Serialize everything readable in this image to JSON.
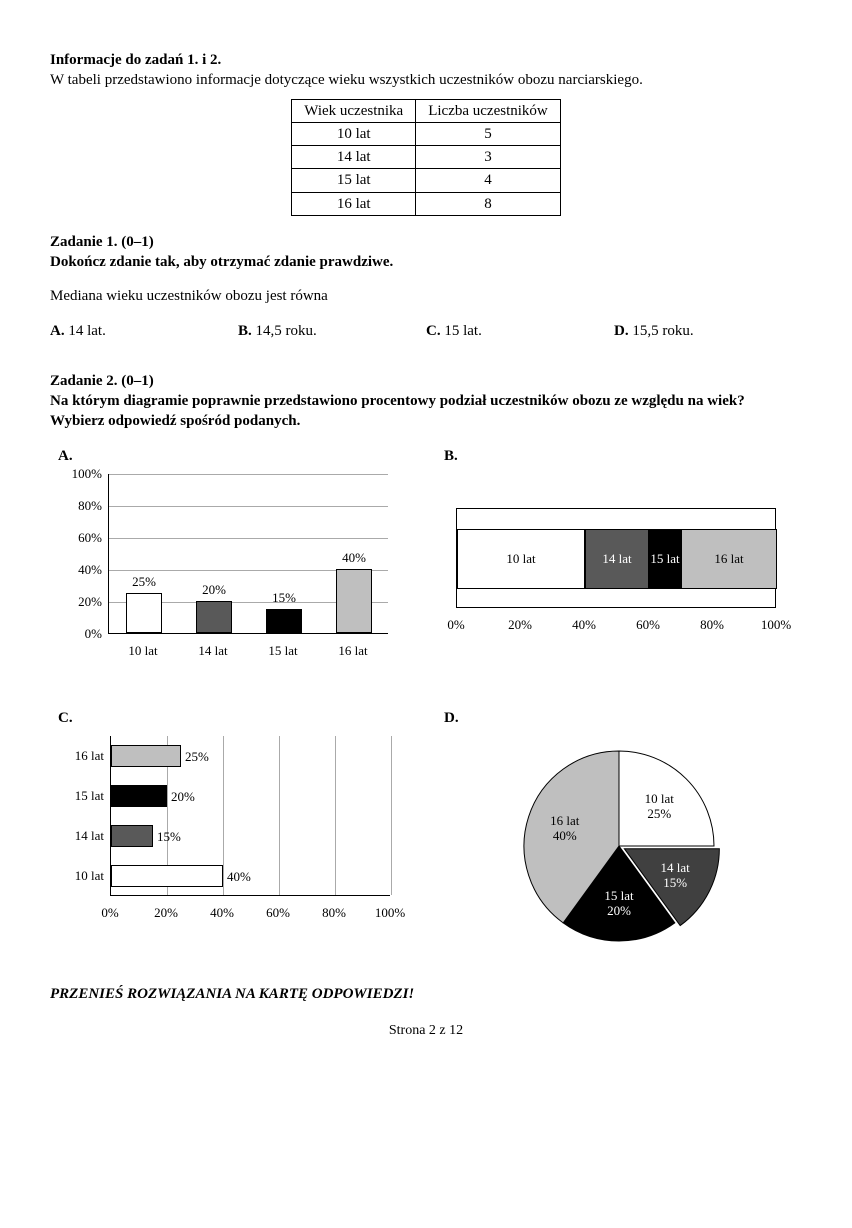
{
  "info": {
    "heading": "Informacje do zadań 1. i 2.",
    "text": "W tabeli przedstawiono informacje dotyczące wieku wszystkich uczestników obozu narciarskiego."
  },
  "table": {
    "columns": [
      "Wiek uczestnika",
      "Liczba uczestników"
    ],
    "rows": [
      [
        "10 lat",
        "5"
      ],
      [
        "14 lat",
        "3"
      ],
      [
        "15 lat",
        "4"
      ],
      [
        "16 lat",
        "8"
      ]
    ]
  },
  "task1": {
    "heading": "Zadanie 1. (0–1)",
    "instruction": "Dokończ zdanie tak, aby otrzymać zdanie prawdziwe.",
    "prompt": "Mediana wieku uczestników obozu jest równa",
    "answers": {
      "A": "14 lat.",
      "B": "14,5 roku.",
      "C": "15 lat.",
      "D": "15,5 roku."
    }
  },
  "task2": {
    "heading": "Zadanie 2. (0–1)",
    "instruction": "Na którym diagramie poprawnie przedstawiono procentowy podział uczestników obozu ze względu na wiek? Wybierz odpowiedź spośród podanych.",
    "labels": {
      "A": "A.",
      "B": "B.",
      "C": "C.",
      "D": "D."
    }
  },
  "chartA": {
    "type": "bar",
    "categories": [
      "10 lat",
      "14 lat",
      "15 lat",
      "16 lat"
    ],
    "values": [
      25,
      20,
      15,
      40
    ],
    "value_labels": [
      "25%",
      "20%",
      "15%",
      "40%"
    ],
    "bar_colors": [
      "#ffffff",
      "#595959",
      "#000000",
      "#bfbfbf"
    ],
    "ylim": [
      0,
      100
    ],
    "ytick_step": 20,
    "ytick_labels": [
      "0%",
      "20%",
      "40%",
      "60%",
      "80%",
      "100%"
    ],
    "grid_color": "#aaaaaa",
    "label_fontsize": 13
  },
  "chartB": {
    "type": "stacked-bar-horizontal",
    "segments": [
      {
        "label": "10 lat",
        "start": 0,
        "width": 40,
        "color": "#ffffff",
        "text_color": "#000000"
      },
      {
        "label": "14 lat",
        "start": 40,
        "width": 20,
        "color": "#595959",
        "text_color": "#ffffff"
      },
      {
        "label": "15 lat",
        "start": 60,
        "width": 10,
        "color": "#000000",
        "text_color": "#ffffff"
      },
      {
        "label": "16 lat",
        "start": 70,
        "width": 30,
        "color": "#bfbfbf",
        "text_color": "#000000"
      }
    ],
    "xtick_step": 20,
    "xtick_labels": [
      "0%",
      "20%",
      "40%",
      "60%",
      "80%",
      "100%"
    ],
    "label_fontsize": 13
  },
  "chartC": {
    "type": "bar-horizontal",
    "categories": [
      "16 lat",
      "15 lat",
      "14 lat",
      "10 lat"
    ],
    "values": [
      25,
      20,
      15,
      40
    ],
    "value_labels": [
      "25%",
      "20%",
      "15%",
      "40%"
    ],
    "bar_colors": [
      "#bfbfbf",
      "#000000",
      "#595959",
      "#ffffff"
    ],
    "xlim": [
      0,
      100
    ],
    "xtick_step": 20,
    "xtick_labels": [
      "0%",
      "20%",
      "40%",
      "60%",
      "80%",
      "100%"
    ],
    "label_fontsize": 13
  },
  "chartD": {
    "type": "pie",
    "slices": [
      {
        "label": "10 lat",
        "pct": "25%",
        "value": 25,
        "color": "#ffffff",
        "text_color": "#000000"
      },
      {
        "label": "14 lat",
        "pct": "15%",
        "value": 15,
        "color": "#404040",
        "text_color": "#ffffff"
      },
      {
        "label": "15 lat",
        "pct": "20%",
        "value": 20,
        "color": "#000000",
        "text_color": "#ffffff"
      },
      {
        "label": "16 lat",
        "pct": "40%",
        "value": 40,
        "color": "#bfbfbf",
        "text_color": "#000000"
      }
    ],
    "border_color": "#000000",
    "exploded_slice_index": 1,
    "explode_offset": 6
  },
  "footer": {
    "instruction": "PRZENIEŚ ROZWIĄZANIA NA KARTĘ ODPOWIEDZI!",
    "page": "Strona 2 z 12"
  }
}
